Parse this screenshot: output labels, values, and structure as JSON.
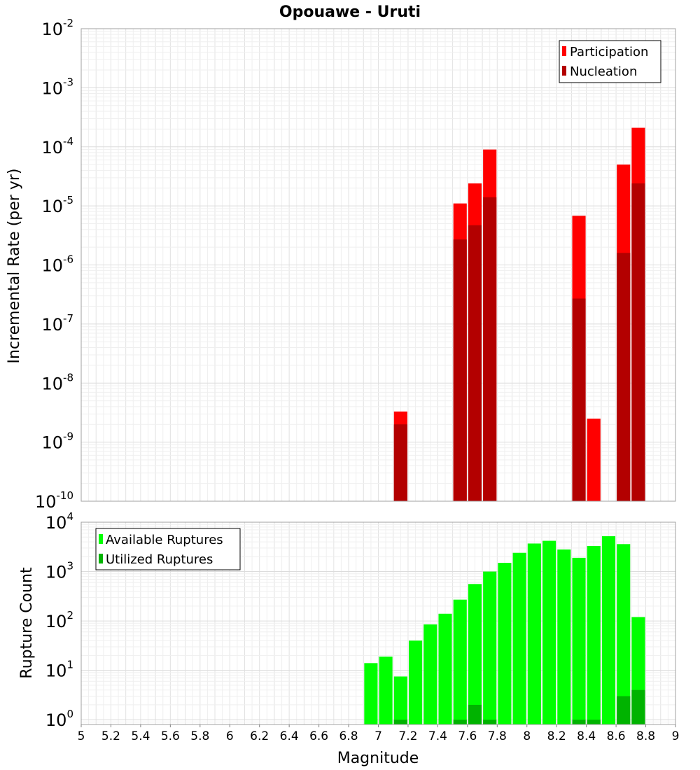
{
  "chart_data": [
    {
      "type": "bar",
      "title": "Opouawe - Uruti",
      "xlabel": "",
      "ylabel": "Incremental Rate (per yr)",
      "yscale": "log",
      "xlim": [
        5,
        9
      ],
      "ylim": [
        1e-10,
        0.01
      ],
      "grid": true,
      "legend_position": "top-right",
      "series": [
        {
          "name": "Participation",
          "color": "#ff0000",
          "points": [
            {
              "x": 7.15,
              "y": 3.3e-09
            },
            {
              "x": 7.55,
              "y": 1.1e-05
            },
            {
              "x": 7.65,
              "y": 2.4e-05
            },
            {
              "x": 7.75,
              "y": 9e-05
            },
            {
              "x": 8.35,
              "y": 6.8e-06
            },
            {
              "x": 8.45,
              "y": 2.5e-09
            },
            {
              "x": 8.65,
              "y": 5e-05
            },
            {
              "x": 8.75,
              "y": 0.00021
            }
          ]
        },
        {
          "name": "Nucleation",
          "color": "#b30000",
          "points": [
            {
              "x": 7.15,
              "y": 2e-09
            },
            {
              "x": 7.55,
              "y": 2.7e-06
            },
            {
              "x": 7.65,
              "y": 4.7e-06
            },
            {
              "x": 7.75,
              "y": 1.4e-05
            },
            {
              "x": 8.35,
              "y": 2.7e-07
            },
            {
              "x": 8.65,
              "y": 1.6e-06
            },
            {
              "x": 8.75,
              "y": 2.4e-05
            }
          ]
        }
      ],
      "y_ticks": [
        {
          "base": "10",
          "exp": "-10",
          "value": 1e-10
        },
        {
          "base": "10",
          "exp": "-9",
          "value": 1e-09
        },
        {
          "base": "10",
          "exp": "-8",
          "value": 1e-08
        },
        {
          "base": "10",
          "exp": "-7",
          "value": 1e-07
        },
        {
          "base": "10",
          "exp": "-6",
          "value": 1e-06
        },
        {
          "base": "10",
          "exp": "-5",
          "value": 1e-05
        },
        {
          "base": "10",
          "exp": "-4",
          "value": 0.0001
        },
        {
          "base": "10",
          "exp": "-3",
          "value": 0.001
        },
        {
          "base": "10",
          "exp": "-2",
          "value": 0.01
        }
      ]
    },
    {
      "type": "bar",
      "title": "",
      "xlabel": "Magnitude",
      "ylabel": "Rupture Count",
      "yscale": "log",
      "xlim": [
        5,
        9
      ],
      "ylim": [
        0.8,
        10000
      ],
      "grid": true,
      "legend_position": "top-left",
      "series": [
        {
          "name": "Available Ruptures",
          "color": "#00ff00",
          "points": [
            {
              "x": 6.95,
              "y": 14
            },
            {
              "x": 7.05,
              "y": 19
            },
            {
              "x": 7.15,
              "y": 7.5
            },
            {
              "x": 7.25,
              "y": 40
            },
            {
              "x": 7.35,
              "y": 85
            },
            {
              "x": 7.45,
              "y": 140
            },
            {
              "x": 7.55,
              "y": 270
            },
            {
              "x": 7.65,
              "y": 560
            },
            {
              "x": 7.75,
              "y": 1000
            },
            {
              "x": 7.85,
              "y": 1500
            },
            {
              "x": 7.95,
              "y": 2400
            },
            {
              "x": 8.05,
              "y": 3700
            },
            {
              "x": 8.15,
              "y": 4200
            },
            {
              "x": 8.25,
              "y": 2800
            },
            {
              "x": 8.35,
              "y": 1900
            },
            {
              "x": 8.45,
              "y": 3300
            },
            {
              "x": 8.55,
              "y": 5200
            },
            {
              "x": 8.65,
              "y": 3600
            },
            {
              "x": 8.75,
              "y": 120
            }
          ]
        },
        {
          "name": "Utilized Ruptures",
          "color": "#00b300",
          "points": [
            {
              "x": 7.15,
              "y": 1
            },
            {
              "x": 7.55,
              "y": 1
            },
            {
              "x": 7.65,
              "y": 2
            },
            {
              "x": 7.75,
              "y": 1
            },
            {
              "x": 8.35,
              "y": 1
            },
            {
              "x": 8.45,
              "y": 1
            },
            {
              "x": 8.65,
              "y": 3
            },
            {
              "x": 8.75,
              "y": 4
            }
          ]
        }
      ],
      "y_ticks": [
        {
          "base": "10",
          "exp": "0",
          "value": 1
        },
        {
          "base": "10",
          "exp": "1",
          "value": 10
        },
        {
          "base": "10",
          "exp": "2",
          "value": 100
        },
        {
          "base": "10",
          "exp": "3",
          "value": 1000
        },
        {
          "base": "10",
          "exp": "4",
          "value": 10000
        }
      ],
      "x_ticks": [
        "5",
        "5.2",
        "5.4",
        "5.6",
        "5.8",
        "6",
        "6.2",
        "6.4",
        "6.6",
        "6.8",
        "7",
        "7.2",
        "7.4",
        "7.6",
        "7.8",
        "8",
        "8.2",
        "8.4",
        "8.6",
        "8.8",
        "9"
      ]
    }
  ]
}
